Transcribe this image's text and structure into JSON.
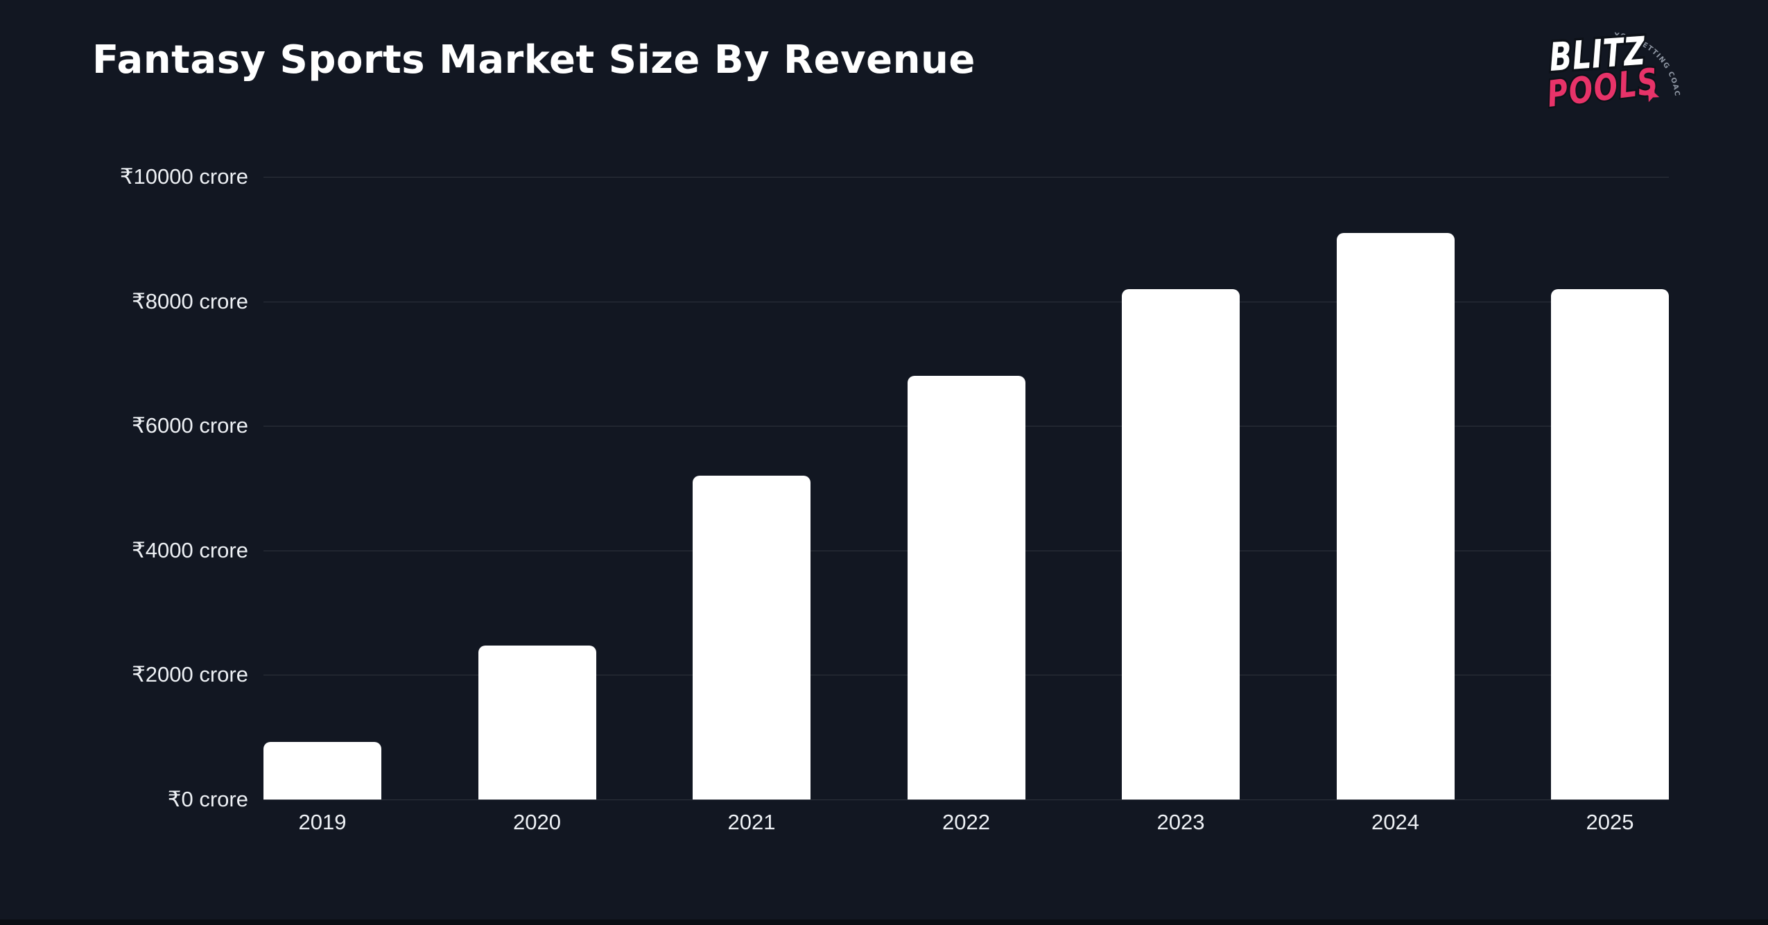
{
  "header": {
    "title": "Fantasy Sports Market Size By Revenue"
  },
  "logo": {
    "brand_top": "BLITZ",
    "brand_bottom": "POOLS",
    "tagline": "YOU BETTING COACH",
    "star_icon": "4-point-star",
    "colors": {
      "brand_pink": "#E73369",
      "brand_white": "#FFFFFF",
      "tagline_gray": "#8E96A3"
    }
  },
  "chart_data": {
    "type": "bar",
    "title": "Fantasy Sports Market Size By Revenue",
    "categories": [
      "2019",
      "2020",
      "2021",
      "2022",
      "2023",
      "2024",
      "2025"
    ],
    "values": [
      920,
      2470,
      5200,
      6800,
      8200,
      9100,
      8200
    ],
    "unit": "₹ crore",
    "xlabel": "",
    "ylabel": "",
    "ylim": [
      0,
      10000
    ],
    "ytick_values": [
      0,
      2000,
      4000,
      6000,
      8000,
      10000
    ],
    "ytick_labels": [
      "₹0 crore",
      "₹2000 crore",
      "₹4000 crore",
      "₹6000 crore",
      "₹8000 crore",
      "₹10000 crore"
    ],
    "grid": true,
    "legend": false,
    "bar_color": "#FFFFFF",
    "background_color": "#121722",
    "gridline_color": "rgba(255,255,255,0.12)",
    "text_color": "#EEF1F5"
  }
}
